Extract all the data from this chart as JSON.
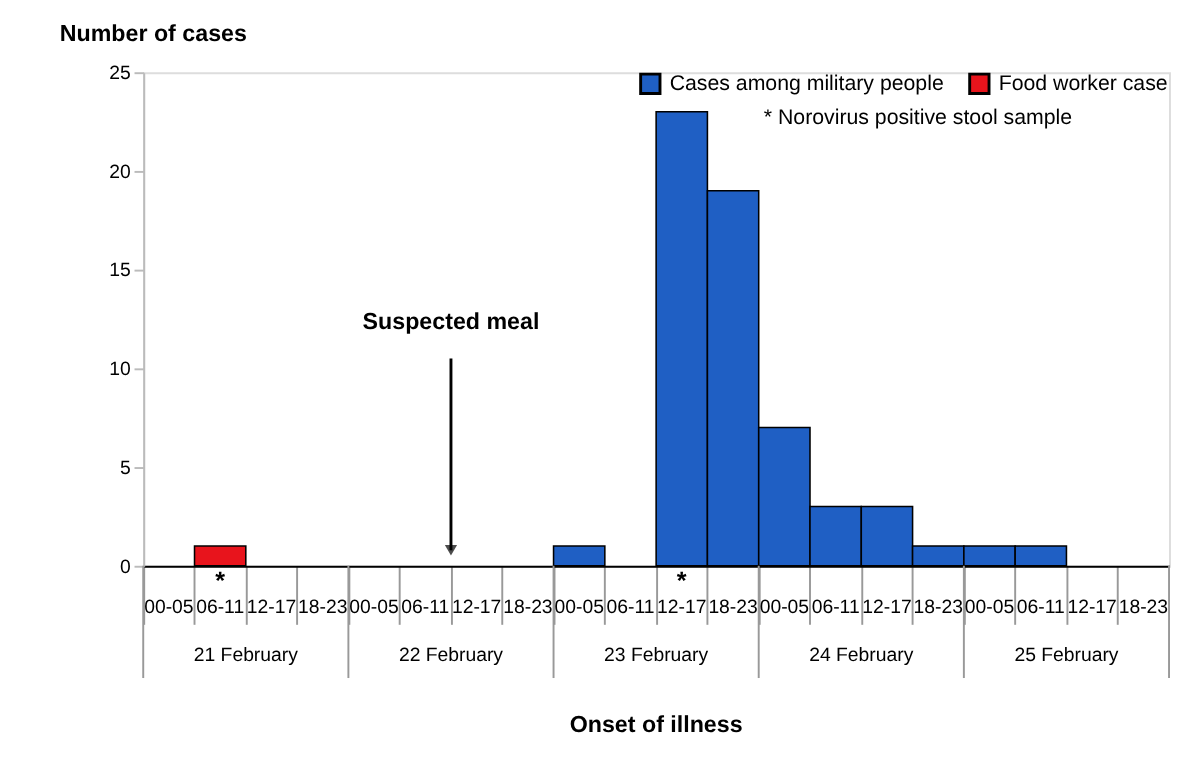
{
  "chart_data": {
    "type": "bar",
    "xlabel": "Onset of illness",
    "ylabel": "Number of cases",
    "categories": [
      "00-05",
      "06-11",
      "12-17",
      "18-23",
      "00-05",
      "06-11",
      "12-17",
      "18-23",
      "00-05",
      "06-11",
      "12-17",
      "18-23",
      "00-05",
      "06-11",
      "12-17",
      "18-23",
      "00-05",
      "06-11",
      "12-17",
      "18-23"
    ],
    "series": [
      {
        "name": "Cases among military people",
        "color": "#1f5fc4",
        "values": [
          null,
          null,
          null,
          null,
          null,
          null,
          null,
          null,
          1,
          null,
          23,
          19,
          7,
          3,
          3,
          1,
          1,
          1,
          null,
          null
        ]
      },
      {
        "name": "Food worker case",
        "color": "#e8141c",
        "values": [
          null,
          1,
          null,
          null,
          null,
          null,
          null,
          null,
          null,
          null,
          null,
          null,
          null,
          null,
          null,
          null,
          null,
          null,
          null,
          null
        ]
      }
    ],
    "ylim": [
      0,
      25
    ],
    "yticks": [
      0,
      5,
      10,
      15,
      20,
      25
    ],
    "grid": false,
    "legend": "top right",
    "annotations": [
      "Suspected meal",
      "*",
      "*",
      "* Norovirus positive stool sample",
      "21 February",
      "22 February",
      "23 February",
      "24 February",
      "25 February"
    ]
  }
}
